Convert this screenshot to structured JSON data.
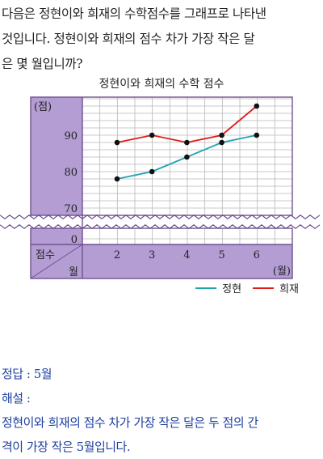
{
  "question": {
    "lines": [
      "다음은 정현이와 희재의 수학점수를 그래프로 나타낸",
      "것입니다. 정현이와 희재의 점수 차가 가장 작은 달",
      "은 몇 월입니까?"
    ]
  },
  "chart_data": {
    "type": "line",
    "title": "정현이와 희재의 수학 점수",
    "x": [
      2,
      3,
      4,
      5,
      6
    ],
    "x_tick_labels": [
      "2",
      "3",
      "4",
      "5",
      "6"
    ],
    "y_tick_labels": [
      "90",
      "80",
      "70",
      "0"
    ],
    "ylabel": "(점)",
    "xunit": "(월)",
    "row_header_score": "점수",
    "row_header_month": "월",
    "ylim": [
      0,
      100
    ],
    "y_break": [
      0,
      70
    ],
    "grid": true,
    "legend_position": "bottom-right",
    "series": [
      {
        "name": "정현",
        "color": "#1ea3b3",
        "values": [
          78,
          80,
          84,
          88,
          90
        ]
      },
      {
        "name": "희재",
        "color": "#e01b1b",
        "values": [
          88,
          90,
          88,
          90,
          98
        ]
      }
    ],
    "colors": {
      "panel": "#b39dd3",
      "frame": "#6e5190",
      "grid": "#b8b8b8"
    }
  },
  "answer": {
    "answer_line": "정답 : 5월",
    "explanation_label": "해설 :",
    "explanation_lines": [
      "정현이와 희재의 점수 차가 가장 작은 달은 두 점의 간",
      "격이 가장 작은 5월입니다."
    ]
  }
}
